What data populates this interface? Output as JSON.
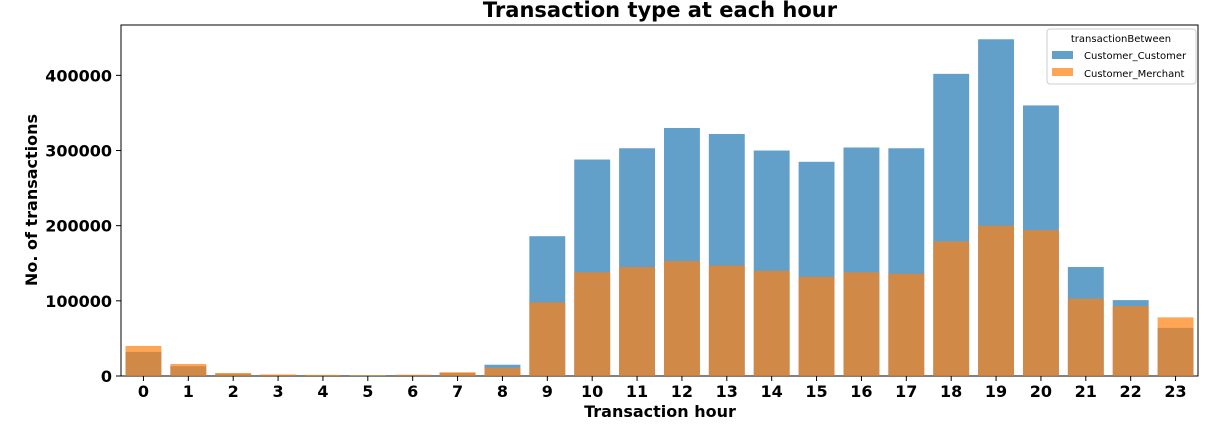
{
  "chart_data": {
    "type": "bar",
    "title": "Transaction type at each hour",
    "xlabel": "Transaction hour",
    "ylabel": "No. of transactions",
    "categories": [
      "0",
      "1",
      "2",
      "3",
      "4",
      "5",
      "6",
      "7",
      "8",
      "9",
      "10",
      "11",
      "12",
      "13",
      "14",
      "15",
      "16",
      "17",
      "18",
      "19",
      "20",
      "21",
      "22",
      "23"
    ],
    "series": [
      {
        "name": "Customer_Customer",
        "color": "#1f77b4",
        "values": [
          32000,
          13000,
          3000,
          1500,
          1000,
          1000,
          1500,
          4000,
          15000,
          186000,
          288000,
          303000,
          330000,
          322000,
          300000,
          285000,
          304000,
          303000,
          402000,
          448000,
          360000,
          145000,
          101000,
          64000
        ]
      },
      {
        "name": "Customer_Merchant",
        "color": "#ff7f0e",
        "values": [
          40000,
          16000,
          4000,
          2000,
          1500,
          1000,
          1500,
          5000,
          11000,
          98000,
          138000,
          145000,
          153000,
          147000,
          140000,
          132000,
          138000,
          136000,
          179000,
          200000,
          194000,
          103000,
          93000,
          78000
        ]
      }
    ],
    "overlay": true,
    "opacity": 0.7,
    "ylim": [
      0,
      467000
    ],
    "yticks": [
      {
        "value": 0,
        "label": "0"
      },
      {
        "value": 100000,
        "label": "100000"
      },
      {
        "value": 200000,
        "label": "200000"
      },
      {
        "value": 300000,
        "label": "300000"
      },
      {
        "value": 400000,
        "label": "400000"
      }
    ],
    "grid": false,
    "legend": {
      "title": "transactionBetween",
      "placement": "top-right"
    }
  }
}
